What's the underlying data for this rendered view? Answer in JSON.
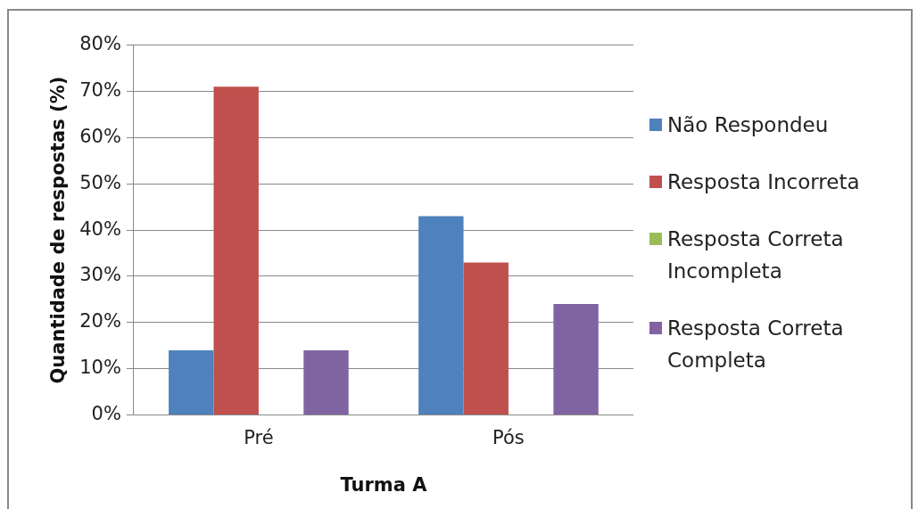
{
  "chart_data": {
    "type": "bar",
    "xlabel": "Turma A",
    "ylabel": "Quantidade de respostas (%)",
    "categories": [
      "Pré",
      "Pós"
    ],
    "series": [
      {
        "name": "Não Respondeu",
        "color": "#4f81bd",
        "values": [
          14,
          43
        ]
      },
      {
        "name": "Resposta Incorreta",
        "color": "#c0504d",
        "values": [
          71,
          33
        ]
      },
      {
        "name": "Resposta Correta Incompleta",
        "color": "#9bbb59",
        "values": [
          0,
          0
        ]
      },
      {
        "name": "Resposta Correta Completa",
        "color": "#8064a2",
        "values": [
          14,
          24
        ]
      }
    ],
    "ylim": [
      0,
      80
    ],
    "yticks": [
      {
        "value": 0,
        "label": "0%"
      },
      {
        "value": 10,
        "label": "10%"
      },
      {
        "value": 20,
        "label": "20%"
      },
      {
        "value": 30,
        "label": "30%"
      },
      {
        "value": 40,
        "label": "40%"
      },
      {
        "value": 50,
        "label": "50%"
      },
      {
        "value": 60,
        "label": "60%"
      },
      {
        "value": 70,
        "label": "70%"
      },
      {
        "value": 80,
        "label": "80%"
      }
    ],
    "grid": "y",
    "legend": "right"
  }
}
